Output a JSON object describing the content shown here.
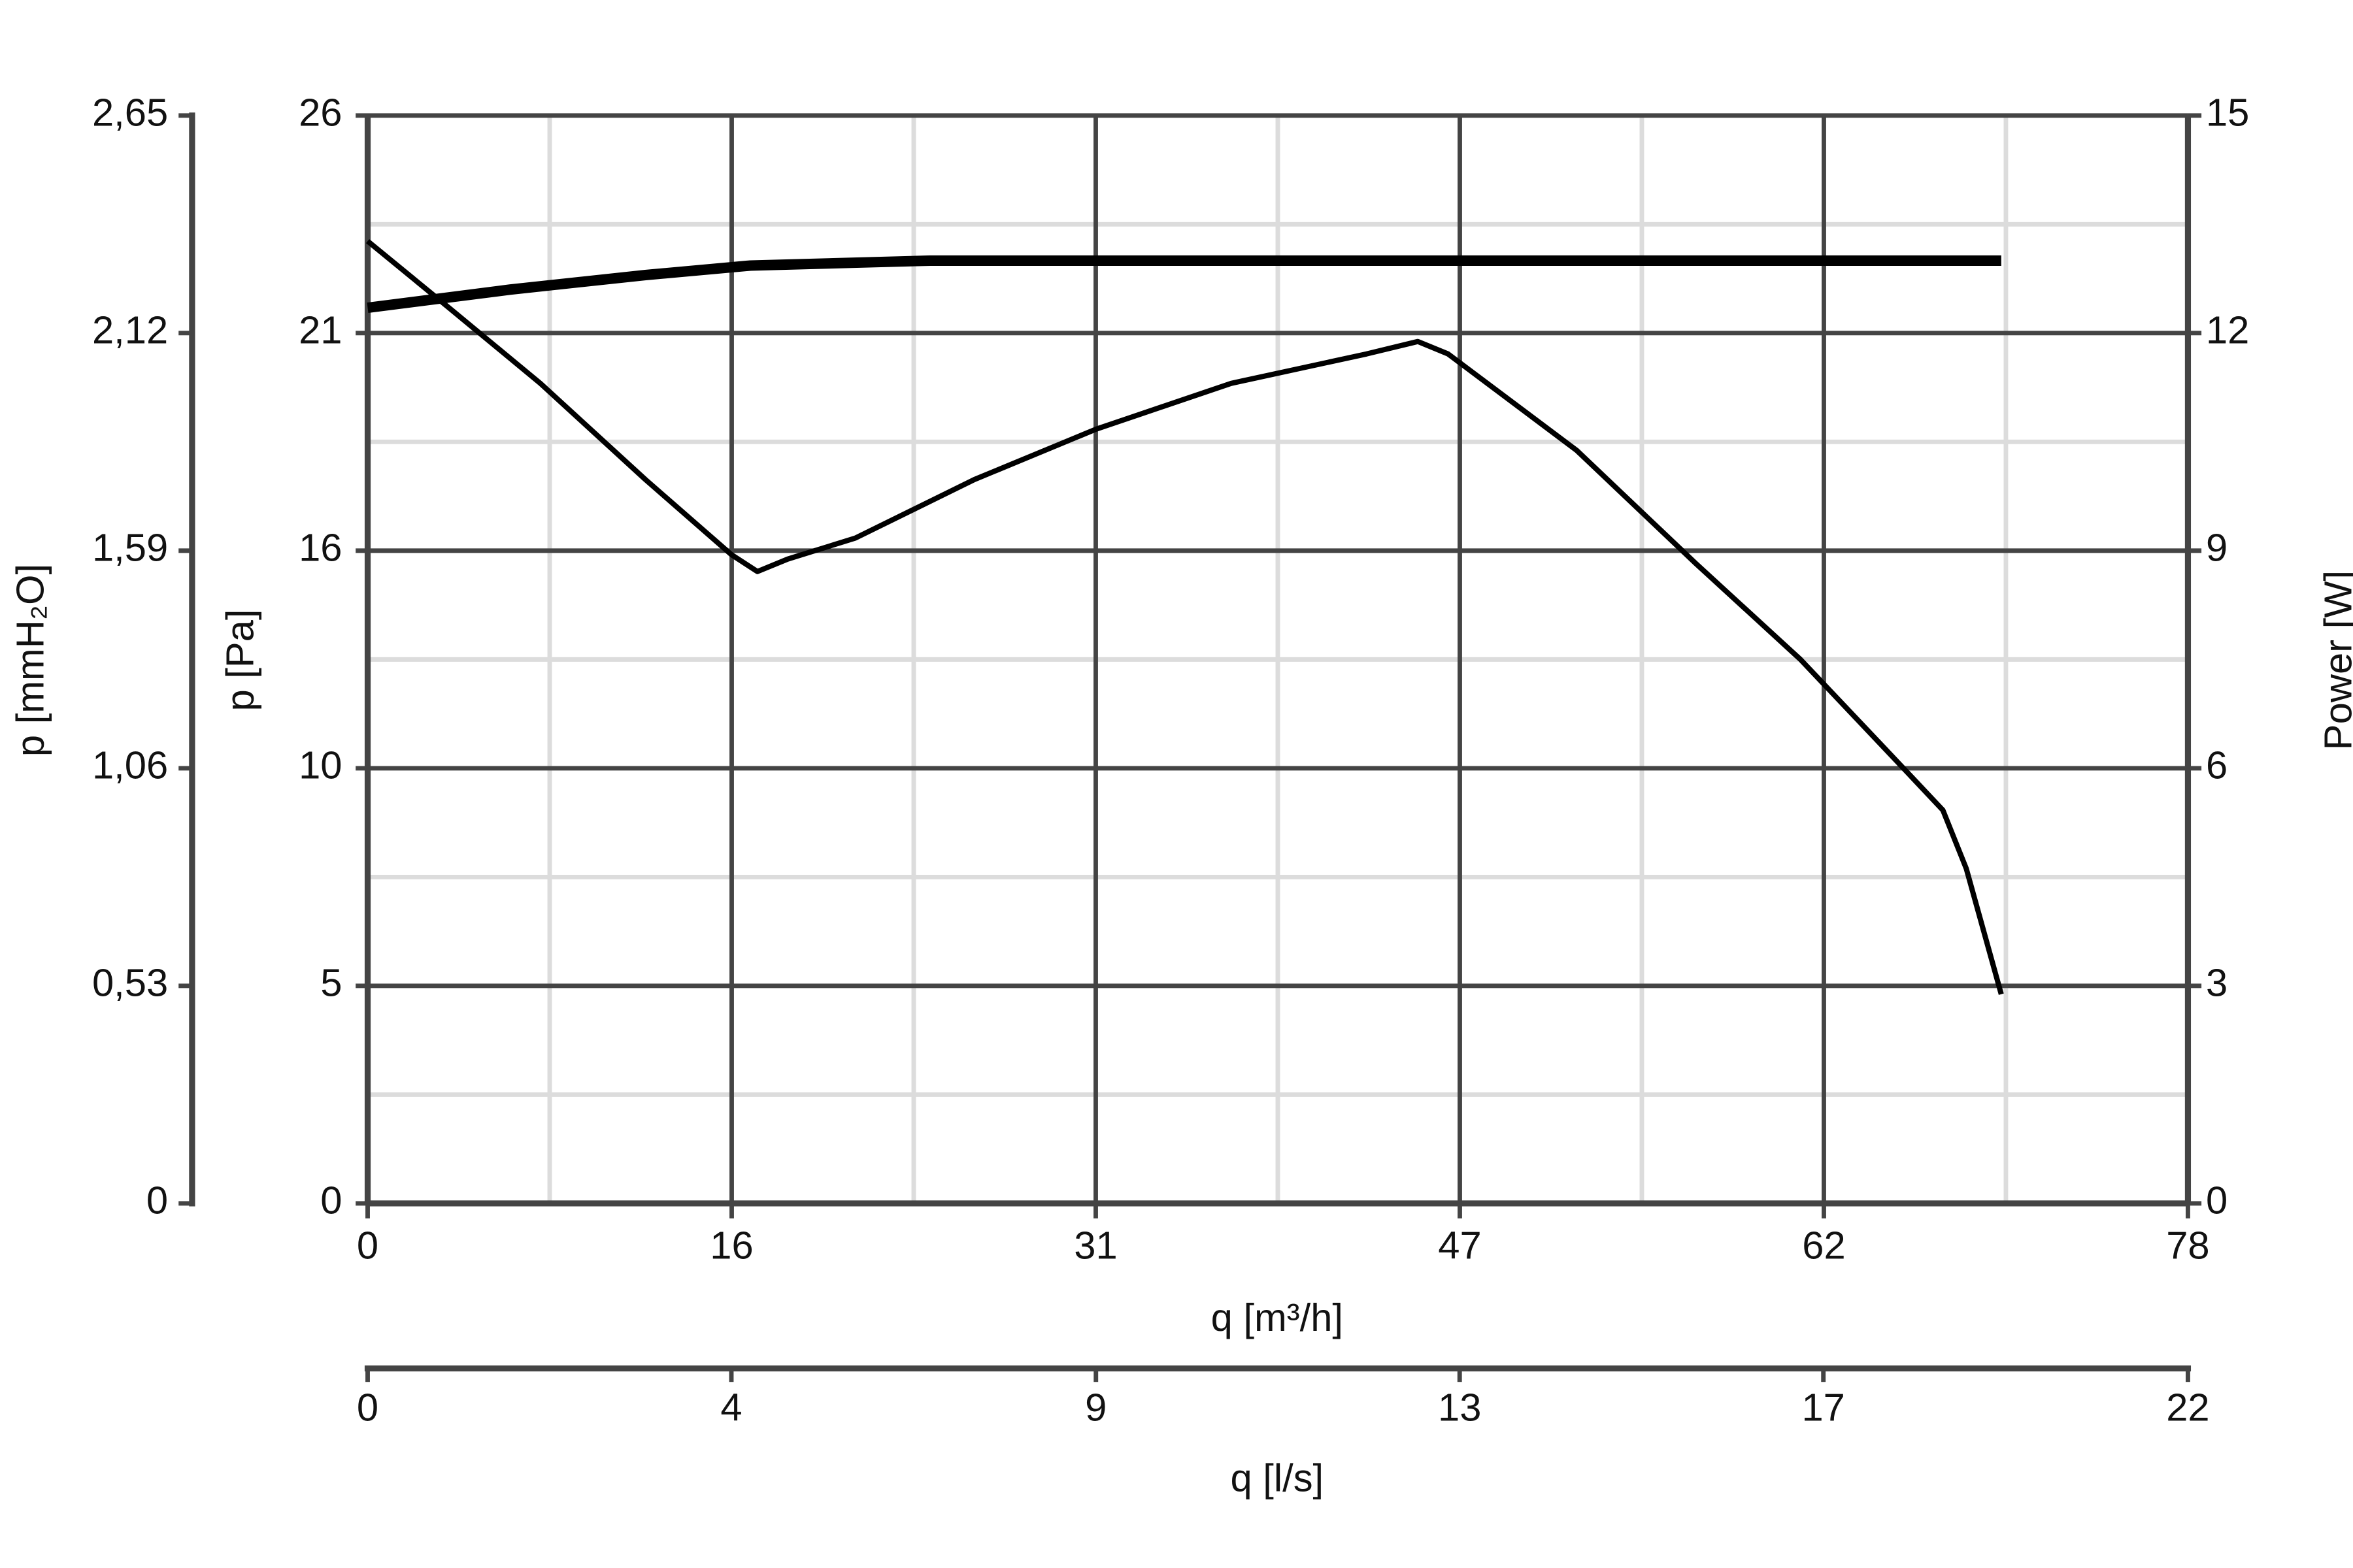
{
  "chart_data": {
    "type": "line",
    "xlabel": "q [m³/h]",
    "ylabel": "p [Pa]",
    "y2label": "Power [W]",
    "y3label": "p [mmH₂O]",
    "x2label": "q [l/s]",
    "xlim": [
      0,
      78
    ],
    "xticks": [
      0,
      {
        "value": 15.6,
        "label": "16"
      },
      {
        "value": 31.2,
        "label": "31"
      },
      {
        "value": 46.8,
        "label": "47"
      },
      {
        "value": 62.4,
        "label": "62"
      },
      78
    ],
    "ylim": [
      0,
      26
    ],
    "yticks": [
      0,
      {
        "value": 5.2,
        "label": "5"
      },
      {
        "value": 10.4,
        "label": "10"
      },
      {
        "value": 15.6,
        "label": "16"
      },
      {
        "value": 20.8,
        "label": "21"
      },
      26
    ],
    "y2lim": [
      0,
      15
    ],
    "y2ticks": [
      0,
      3,
      6,
      9,
      12,
      15
    ],
    "y3lim": [
      0,
      2.65
    ],
    "y3ticks": [
      0,
      {
        "value": 0.53,
        "label": "0,53"
      },
      {
        "value": 1.06,
        "label": "1,06"
      },
      {
        "value": 1.59,
        "label": "1,59"
      },
      {
        "value": 2.12,
        "label": "2,12"
      },
      {
        "value": 2.65,
        "label": "2,65"
      }
    ],
    "x2lim": [
      0,
      21.67
    ],
    "x2ticks": [
      0,
      {
        "value": 4.33,
        "label": "4"
      },
      {
        "value": 8.67,
        "label": "9"
      },
      13,
      {
        "value": 17.33,
        "label": "17"
      },
      {
        "value": 21.67,
        "label": "22"
      }
    ],
    "grid": true,
    "series": [
      {
        "color": "#000000",
        "axis": "y",
        "x": [
          0,
          3.5,
          7.4,
          11.9,
          15.6,
          16.7,
          18.0,
          20.9,
          26.0,
          31.2,
          37.0,
          42.8,
          45.0,
          46.3,
          51.8,
          56.9,
          61.4,
          65.3,
          67.5,
          68.5,
          70.0
        ],
        "values": [
          23.0,
          21.4,
          19.6,
          17.3,
          15.5,
          15.1,
          15.4,
          15.9,
          17.3,
          18.5,
          19.6,
          20.3,
          20.6,
          20.3,
          18.0,
          15.3,
          13.0,
          10.7,
          9.4,
          8.0,
          5.0
        ]
      },
      {
        "color": "#000000",
        "axis": "y2",
        "x": [
          0,
          6.1,
          11.9,
          16.4,
          24.1,
          70.0
        ],
        "values": [
          12.35,
          12.6,
          12.8,
          12.93,
          13.0,
          13.0
        ]
      }
    ]
  }
}
